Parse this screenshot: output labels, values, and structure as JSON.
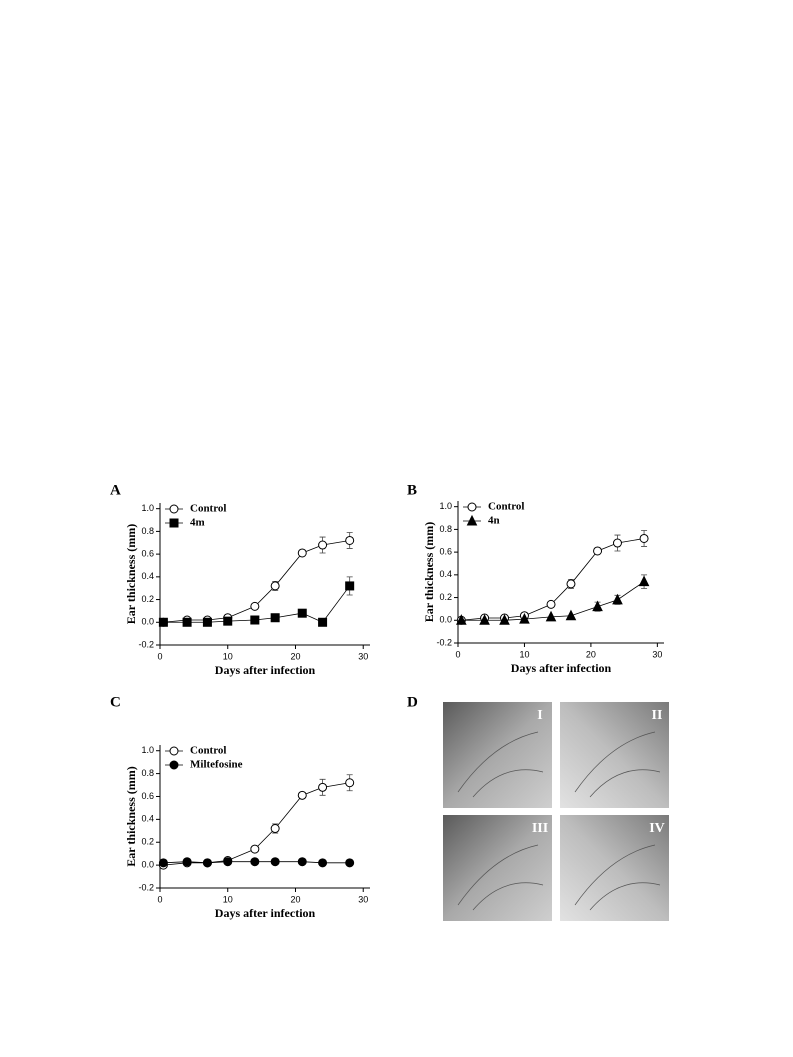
{
  "chart_data": [
    {
      "type": "line",
      "label": "A",
      "xlabel": "Days after infection",
      "ylabel": "Ear thickness (mm)",
      "x": [
        0.5,
        4,
        7,
        10,
        14,
        17,
        21,
        24,
        28
      ],
      "xlim": [
        0,
        31
      ],
      "xticks": [
        0,
        10,
        20,
        30
      ],
      "ylim": [
        -0.2,
        1.05
      ],
      "yticks": [
        -0.2,
        {
          "value": 0,
          "label": "0.0"
        },
        0.2,
        0.4,
        0.6,
        0.8,
        {
          "value": 1,
          "label": "1.0"
        }
      ],
      "series": [
        {
          "name": "Control",
          "color": "#000000",
          "marker": "circle",
          "filled": false,
          "values": [
            0,
            0.02,
            0.02,
            0.04,
            0.14,
            0.32,
            0.61,
            0.68,
            0.72
          ],
          "errors": [
            0,
            0,
            0,
            0,
            0,
            0.04,
            0,
            0.07,
            0.07
          ]
        },
        {
          "name": "4m",
          "color": "#000000",
          "marker": "square",
          "filled": true,
          "values": [
            0,
            0,
            0,
            0.01,
            0.02,
            0.04,
            0.08,
            0,
            0.32
          ],
          "errors": [
            0,
            0,
            0,
            0,
            0,
            0,
            0,
            0,
            0.08
          ]
        }
      ]
    },
    {
      "type": "line",
      "label": "B",
      "xlabel": "Days after infection",
      "ylabel": "Ear thickness (mm)",
      "x": [
        0.5,
        4,
        7,
        10,
        14,
        17,
        21,
        24,
        28
      ],
      "xlim": [
        0,
        31
      ],
      "xticks": [
        0,
        10,
        20,
        30
      ],
      "ylim": [
        -0.2,
        1.05
      ],
      "yticks": [
        -0.2,
        {
          "value": 0,
          "label": "0.0"
        },
        0.2,
        0.4,
        0.6,
        0.8,
        {
          "value": 1,
          "label": "1.0"
        }
      ],
      "series": [
        {
          "name": "Control",
          "color": "#000000",
          "marker": "circle",
          "filled": false,
          "values": [
            0,
            0.02,
            0.02,
            0.04,
            0.14,
            0.32,
            0.61,
            0.68,
            0.72
          ],
          "errors": [
            0,
            0,
            0,
            0,
            0,
            0.04,
            0,
            0.07,
            0.07
          ]
        },
        {
          "name": "4n",
          "color": "#000000",
          "marker": "triangle",
          "filled": true,
          "values": [
            0,
            0,
            0,
            0.01,
            0.03,
            0.04,
            0.12,
            0.18,
            0.34
          ],
          "errors": [
            0,
            0,
            0,
            0,
            0,
            0,
            0.04,
            0.04,
            0.06
          ]
        }
      ]
    },
    {
      "type": "line",
      "label": "C",
      "xlabel": "Days after infection",
      "ylabel": "Ear thickness (mm)",
      "x": [
        0.5,
        4,
        7,
        10,
        14,
        17,
        21,
        24,
        28
      ],
      "xlim": [
        0,
        31
      ],
      "xticks": [
        0,
        10,
        20,
        30
      ],
      "ylim": [
        -0.2,
        1.05
      ],
      "yticks": [
        -0.2,
        {
          "value": 0,
          "label": "0.0"
        },
        0.2,
        0.4,
        0.6,
        0.8,
        {
          "value": 1,
          "label": "1.0"
        }
      ],
      "series": [
        {
          "name": "Control",
          "color": "#000000",
          "marker": "circle",
          "filled": false,
          "values": [
            0,
            0.02,
            0.02,
            0.04,
            0.14,
            0.32,
            0.61,
            0.68,
            0.72
          ],
          "errors": [
            0,
            0,
            0,
            0,
            0,
            0.04,
            0,
            0.07,
            0.07
          ]
        },
        {
          "name": "Miltefosine",
          "color": "#000000",
          "marker": "circle",
          "filled": true,
          "values": [
            0.02,
            0.03,
            0.02,
            0.03,
            0.03,
            0.03,
            0.03,
            0.02,
            0.02
          ],
          "errors": [
            0,
            0,
            0,
            0,
            0,
            0,
            0,
            0,
            0
          ]
        }
      ]
    }
  ],
  "photo_panel": {
    "label": "D",
    "images": [
      "I",
      "II",
      "III",
      "IV"
    ]
  }
}
